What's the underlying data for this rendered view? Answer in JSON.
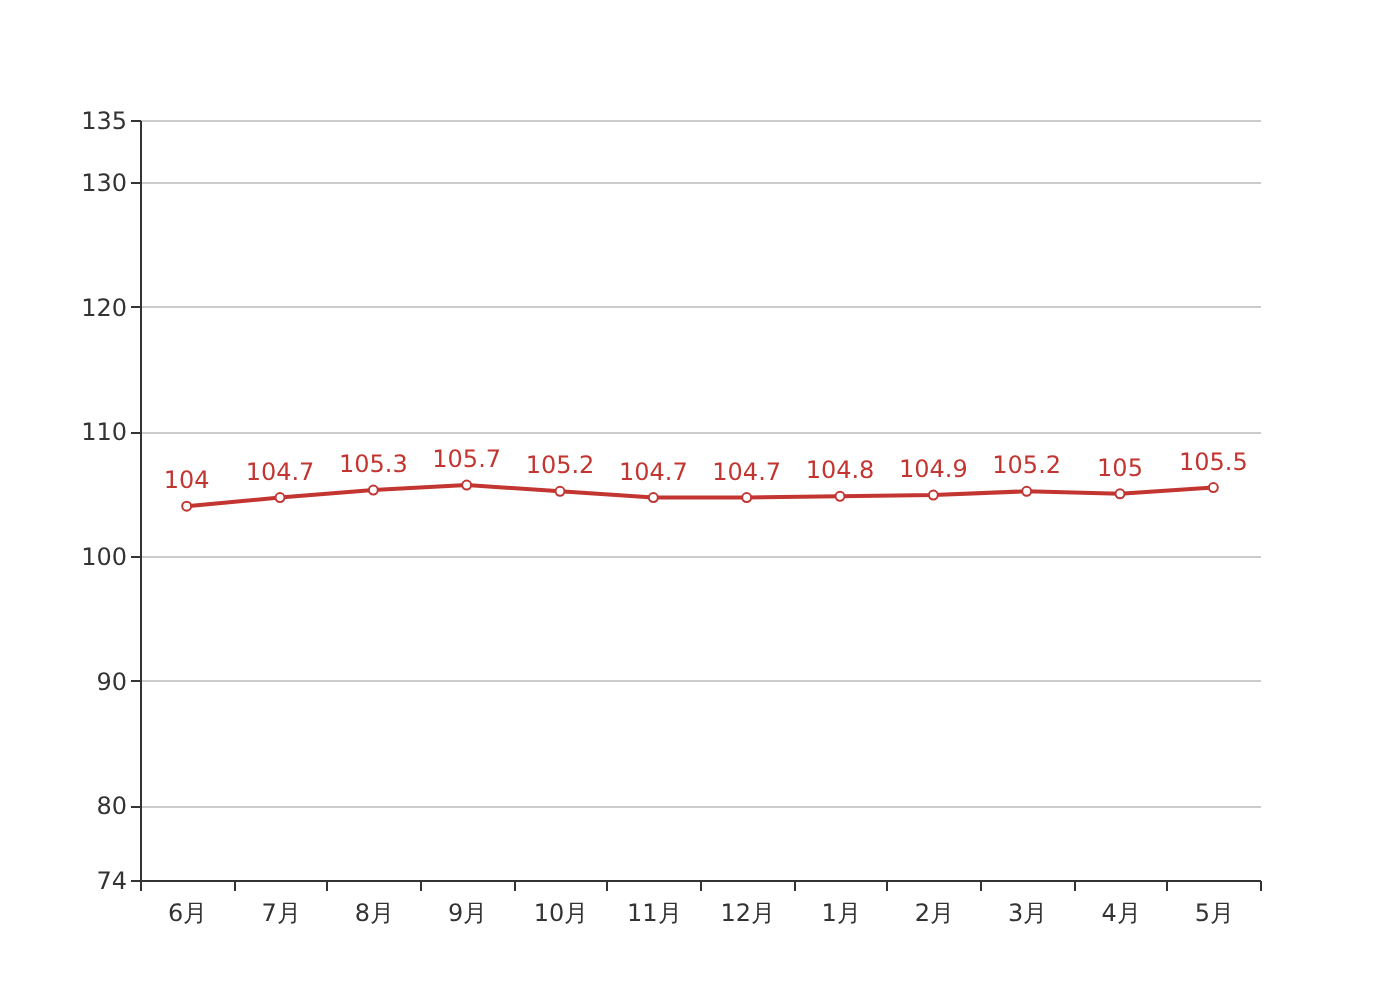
{
  "chart_data": {
    "type": "line",
    "categories": [
      "6月",
      "7月",
      "8月",
      "9月",
      "10月",
      "11月",
      "12月",
      "1月",
      "2月",
      "3月",
      "4月",
      "5月"
    ],
    "series": [
      {
        "color": "#c23531",
        "values": [
          104,
          104.7,
          105.3,
          105.7,
          105.2,
          104.7,
          104.7,
          104.8,
          104.9,
          105.2,
          105,
          105.5
        ]
      }
    ],
    "ylim": [
      74,
      135
    ],
    "yticks": [
      74,
      80,
      90,
      100,
      110,
      120,
      130,
      135
    ],
    "grid": "y",
    "marker": "circle",
    "line_style": "solid",
    "data_labels": true
  }
}
